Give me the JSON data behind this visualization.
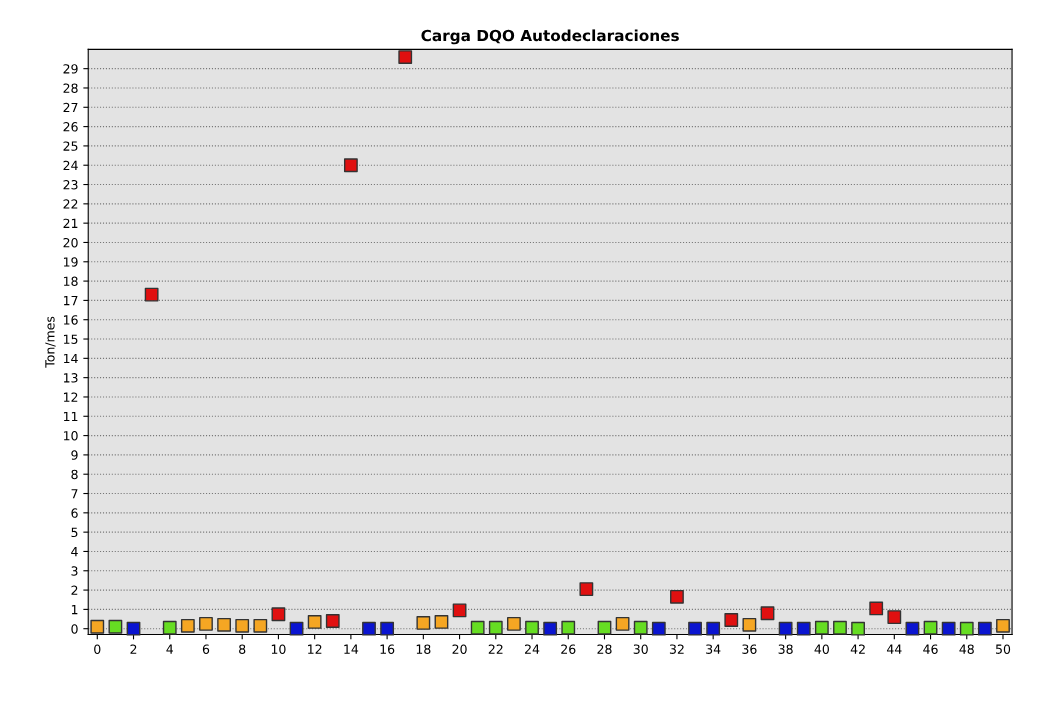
{
  "chart_data": {
    "type": "scatter",
    "title": "Carga DQO Autodeclaraciones",
    "ylabel": "Ton/mes",
    "x": [
      0,
      1,
      2,
      3,
      4,
      5,
      6,
      7,
      8,
      9,
      10,
      11,
      12,
      13,
      14,
      15,
      16,
      17,
      18,
      19,
      20,
      21,
      22,
      23,
      24,
      25,
      26,
      27,
      28,
      29,
      30,
      31,
      32,
      33,
      34,
      35,
      36,
      37,
      38,
      39,
      40,
      41,
      42,
      43,
      44,
      45,
      46,
      47,
      48,
      49,
      50
    ],
    "values": [
      0.1,
      0.1,
      0,
      17.3,
      0.05,
      0.15,
      0.25,
      0.2,
      0.15,
      0.15,
      0.75,
      0,
      0.35,
      0.4,
      24,
      0,
      0,
      29.6,
      0.3,
      0.35,
      0.95,
      0.05,
      0.05,
      0.25,
      0.05,
      0,
      0.05,
      2.05,
      0.05,
      0.25,
      0.05,
      0,
      1.65,
      0,
      0,
      0.45,
      0.2,
      0.8,
      0,
      0,
      0.05,
      0.05,
      0,
      1.05,
      0.6,
      0,
      0.05,
      0,
      0,
      0,
      0.15
    ],
    "colors": [
      "#f5a623",
      "#66dd22",
      "#0a14d0",
      "#e01010",
      "#66dd22",
      "#f5a623",
      "#f5a623",
      "#f5a623",
      "#f5a623",
      "#f5a623",
      "#e01010",
      "#0a14d0",
      "#f5a623",
      "#e01010",
      "#e01010",
      "#0a14d0",
      "#0a14d0",
      "#e01010",
      "#f5a623",
      "#f5a623",
      "#e01010",
      "#66dd22",
      "#66dd22",
      "#f5a623",
      "#66dd22",
      "#0a14d0",
      "#66dd22",
      "#e01010",
      "#66dd22",
      "#f5a623",
      "#66dd22",
      "#0a14d0",
      "#e01010",
      "#0a14d0",
      "#0a14d0",
      "#e01010",
      "#f5a623",
      "#e01010",
      "#0a14d0",
      "#0a14d0",
      "#66dd22",
      "#66dd22",
      "#66dd22",
      "#e01010",
      "#e01010",
      "#0a14d0",
      "#66dd22",
      "#0a14d0",
      "#66dd22",
      "#0a14d0",
      "#f5a623"
    ],
    "xlim": [
      -0.5,
      50.5
    ],
    "xticks": [
      0,
      2,
      4,
      6,
      8,
      10,
      12,
      14,
      16,
      18,
      20,
      22,
      24,
      26,
      28,
      30,
      32,
      34,
      36,
      38,
      40,
      42,
      44,
      46,
      48,
      50
    ],
    "ylim": [
      -0.3,
      30
    ],
    "yticks": [
      0,
      1,
      2,
      3,
      4,
      5,
      6,
      7,
      8,
      9,
      10,
      11,
      12,
      13,
      14,
      15,
      16,
      17,
      18,
      19,
      20,
      21,
      22,
      23,
      24,
      25,
      26,
      27,
      28,
      29
    ],
    "grid": "y",
    "marker": "square",
    "legend": false
  }
}
